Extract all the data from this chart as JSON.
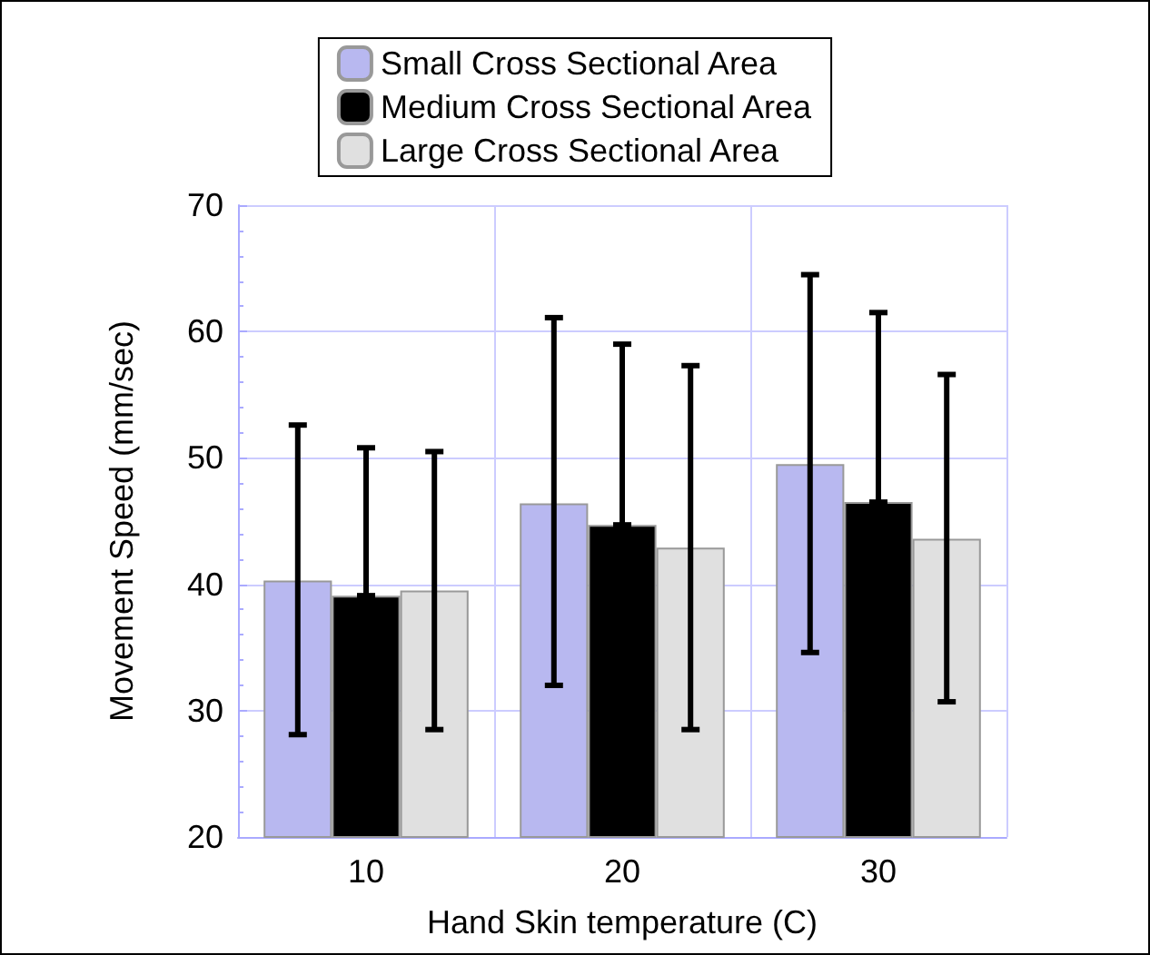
{
  "chart_data": {
    "type": "bar",
    "xlabel": "Hand Skin temperature (C)",
    "ylabel": "Movement Speed (mm/sec)",
    "categories": [
      "10",
      "20",
      "30"
    ],
    "series": [
      {
        "name": "Small Cross Sectional Area",
        "color": "#b8b8f0",
        "values": [
          40.3,
          46.4,
          49.5
        ],
        "errors": [
          [
            28.1,
            52.6
          ],
          [
            32.0,
            61.1
          ],
          [
            34.6,
            64.5
          ]
        ]
      },
      {
        "name": "Medium Cross Sectional Area",
        "color": "#000000",
        "values": [
          39.1,
          44.7,
          46.5
        ],
        "errors": [
          [
            39.1,
            50.8
          ],
          [
            44.7,
            59.0
          ],
          [
            46.5,
            61.5
          ]
        ]
      },
      {
        "name": "Large Cross Sectional Area",
        "color": "#e0e0e0",
        "values": [
          39.5,
          42.9,
          43.6
        ],
        "errors": [
          [
            28.5,
            50.5
          ],
          [
            28.5,
            57.3
          ],
          [
            30.7,
            56.6
          ]
        ]
      }
    ],
    "ylim": [
      20,
      70
    ],
    "yticks": [
      20,
      30,
      40,
      50,
      60,
      70
    ],
    "grid": true,
    "legend": "top"
  }
}
